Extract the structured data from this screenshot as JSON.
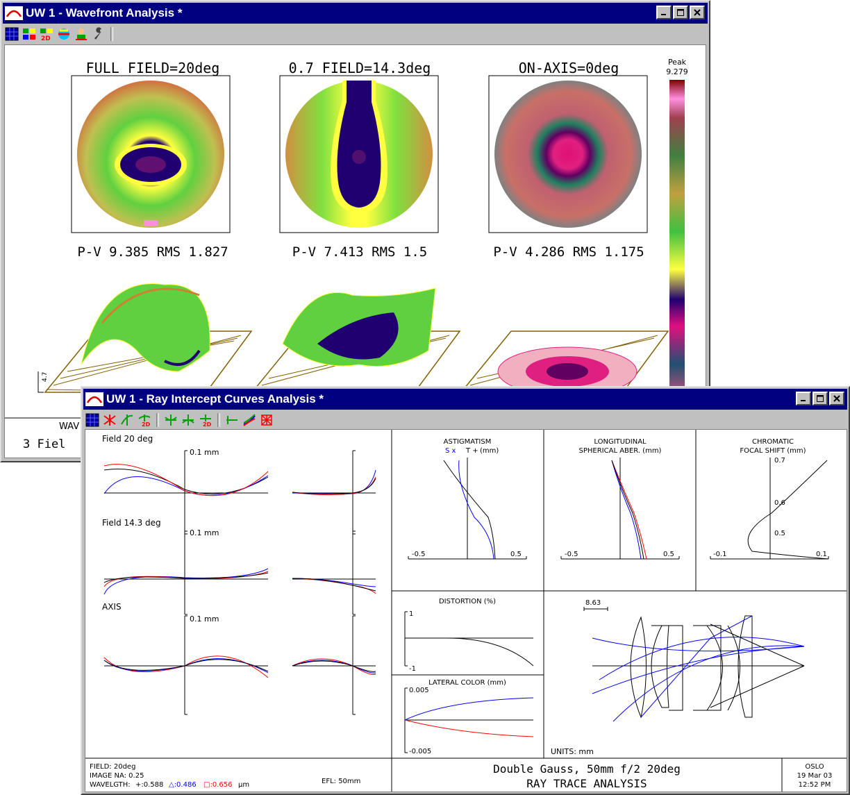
{
  "wavefront_window": {
    "title": "UW 1 - Wavefront Analysis *",
    "fields": [
      {
        "label": "FULL FIELD=20deg",
        "stats": "P-V 9.385 RMS 1.827"
      },
      {
        "label": "0.7 FIELD=14.3deg",
        "stats": "P-V 7.413 RMS 1.5"
      },
      {
        "label": "ON-AXIS=0deg",
        "stats": "P-V 4.286 RMS 1.175"
      }
    ],
    "colorbar": {
      "label": "Peak",
      "value": "9.279"
    },
    "axis_label": "4.7",
    "footer_left_top": "WAV",
    "footer_left_bottom": "3 Fiel"
  },
  "ray_window": {
    "title": "UW 1 - Ray Intercept Curves Analysis *",
    "fields": [
      {
        "label": "Field 20 deg",
        "scale": "0.1 mm"
      },
      {
        "label": "Field 14.3 deg",
        "scale": "0.1 mm"
      },
      {
        "label": "AXIS",
        "scale": "0.1 mm"
      }
    ],
    "astigmatism": {
      "title": "ASTIGMATISM",
      "legend_s": "S x",
      "legend_t": "T +",
      "units": "(mm)",
      "xmin": "-0.5",
      "xmax": "0.5"
    },
    "longitudinal": {
      "title1": "LONGITUDINAL",
      "title2": "SPHERICAL ABER. (mm)",
      "xmin": "-0.5",
      "xmax": "0.5"
    },
    "chromatic": {
      "title1": "CHROMATIC",
      "title2": "FOCAL SHIFT (mm)",
      "y1": "0.7",
      "y2": "0.6",
      "y3": "0.5",
      "xmin": "-0.1",
      "xmax": "0.1"
    },
    "distortion": {
      "title": "DISTORTION (%)",
      "ymax": "1",
      "ymin": "-1"
    },
    "lateral_color": {
      "title": "LATERAL COLOR (mm)",
      "ymax": "0.005",
      "ymin": "-0.005"
    },
    "lens": {
      "scale": "8.63",
      "units": "UNITS: mm"
    },
    "footer": {
      "field": "FIELD: 20deg",
      "image_na": "IMAGE NA: 0.25",
      "wavelength_prefix": "WAVELGTH:",
      "wl1": "+:0.588",
      "wl2": "△:0.486",
      "wl3": "□:0.656",
      "wl_unit": "µm",
      "efl": "EFL: 50mm",
      "center1": "Double Gauss, 50mm f/2 20deg",
      "center2": "RAY TRACE ANALYSIS",
      "right1": "OSLO",
      "right2": "19 Mar 03",
      "right3": "12:52 PM"
    }
  },
  "colors": {
    "black_curve": "#000000",
    "blue_curve": "#0000ff",
    "red_curve": "#ff0000",
    "titlebar": "#000080"
  }
}
